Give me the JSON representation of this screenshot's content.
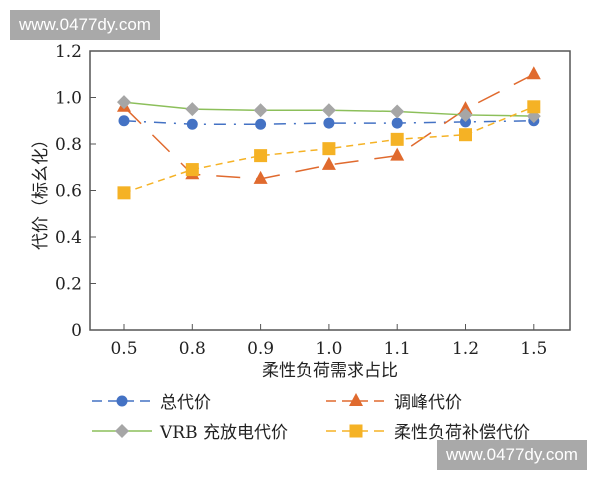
{
  "watermark": "www.0477dy.com",
  "chart_data": {
    "type": "line",
    "xlabel": "柔性负荷需求占比",
    "ylabel": "代价（标幺化）",
    "categories": [
      "0.5",
      "0.8",
      "0.9",
      "1.0",
      "1.1",
      "1.2",
      "1.5"
    ],
    "yticks": [
      "0",
      "0.2",
      "0.4",
      "0.6",
      "0.8",
      "1.0",
      "1.2"
    ],
    "ylim": [
      0,
      1.2
    ],
    "grid": false,
    "legend_position": "bottom",
    "series": [
      {
        "name": "总代价",
        "color": "#4472c4",
        "marker": "circle",
        "dash": "12 8 2 8",
        "values": [
          0.9,
          0.885,
          0.885,
          0.89,
          0.89,
          0.895,
          0.9
        ]
      },
      {
        "name": "调峰代价",
        "color": "#e06a2e",
        "marker": "triangle",
        "dash": "24 16",
        "values": [
          0.96,
          0.67,
          0.65,
          0.71,
          0.75,
          0.95,
          1.1
        ]
      },
      {
        "name": "VRB 充放电代价",
        "color": "#8cbf5a",
        "marker": "diamond",
        "dash": "",
        "values": [
          0.98,
          0.95,
          0.945,
          0.945,
          0.94,
          0.925,
          0.92
        ]
      },
      {
        "name": "柔性负荷补偿代价",
        "color": "#f5b225",
        "marker": "square",
        "dash": "7 5",
        "values": [
          0.59,
          0.69,
          0.75,
          0.78,
          0.82,
          0.84,
          0.96
        ]
      }
    ]
  }
}
